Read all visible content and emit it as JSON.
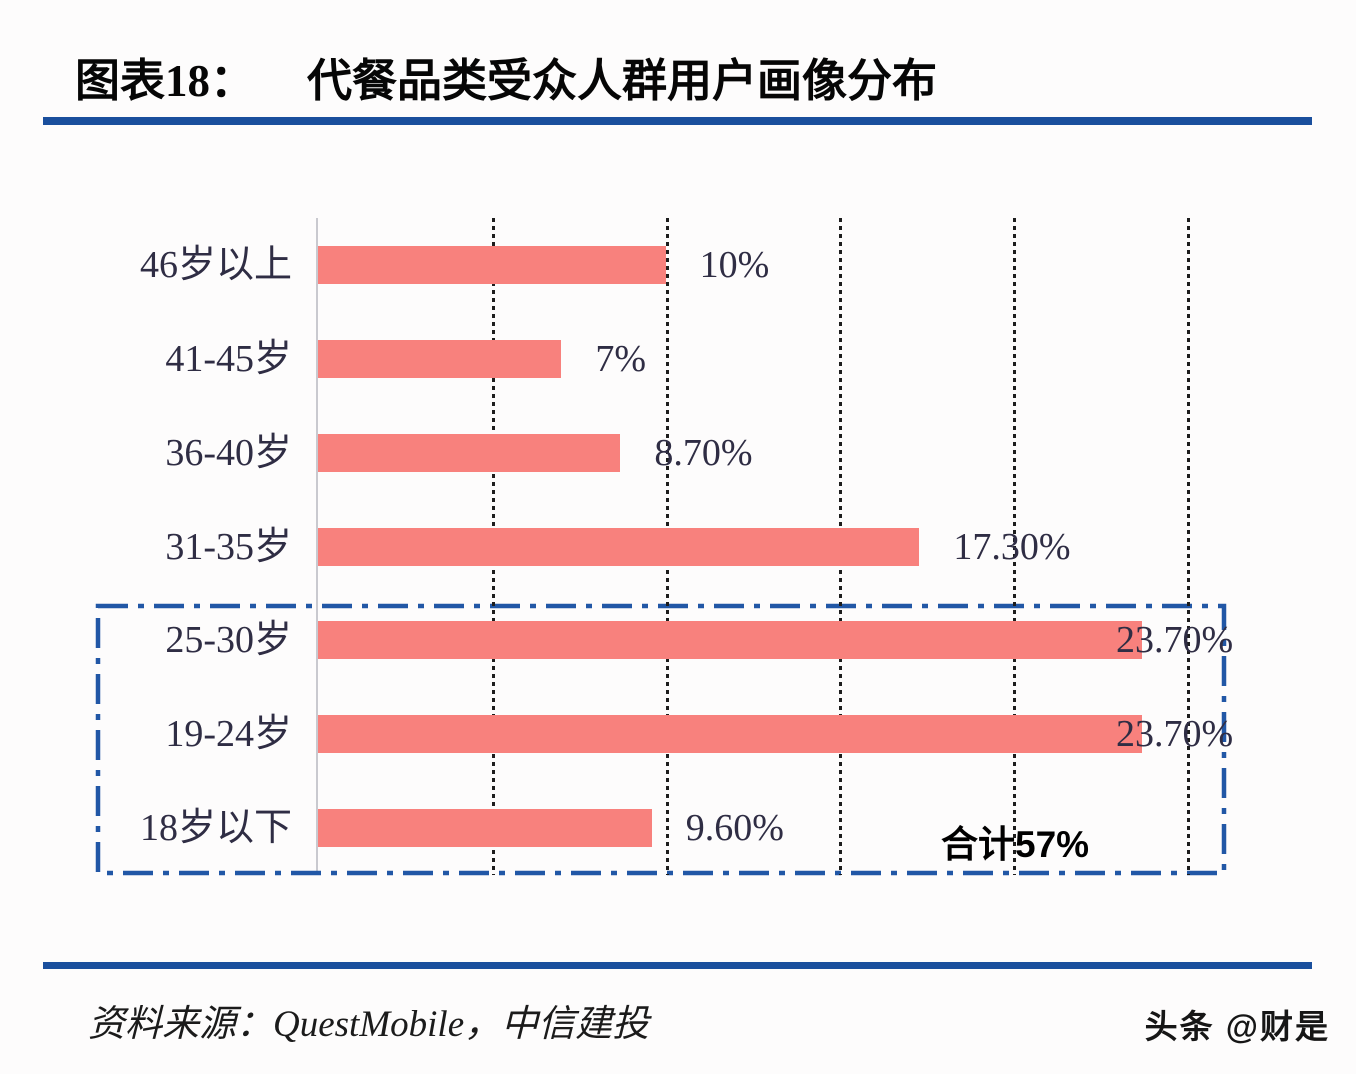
{
  "header": {
    "label": "图表18：",
    "title": "代餐品类受众人群用户画像分布"
  },
  "chart_data": {
    "type": "bar",
    "orientation": "horizontal",
    "title": "代餐品类受众人群用户画像分布",
    "categories": [
      "46岁以上",
      "41-45岁",
      "36-40岁",
      "31-35岁",
      "25-30岁",
      "19-24岁",
      "18岁以下"
    ],
    "values": [
      10,
      7,
      8.7,
      17.3,
      23.7,
      23.7,
      9.6
    ],
    "value_labels": [
      "10%",
      "7%",
      "8.70%",
      "17.30%",
      "23.70%",
      "23.70%",
      "9.60%"
    ],
    "xlim": [
      0,
      25
    ],
    "gridline_interval": 5,
    "grid": "dotted-vertical",
    "legend": "none",
    "bar_color": "#F8817D",
    "label_color": "#2f2d44",
    "highlight_box": {
      "categories": [
        "25-30岁",
        "19-24岁",
        "18岁以下"
      ],
      "annotation": "合计57%",
      "border_color": "#2157A6",
      "style": "dash-dot"
    }
  },
  "footer": {
    "source": "资料来源：QuestMobile，中信建投",
    "watermark": "头条 @财是"
  },
  "colors": {
    "rule_blue": "#1a4f9d",
    "bar_salmon": "#F8817D",
    "box_blue": "#2157A6",
    "background": "#fdfcfc"
  }
}
